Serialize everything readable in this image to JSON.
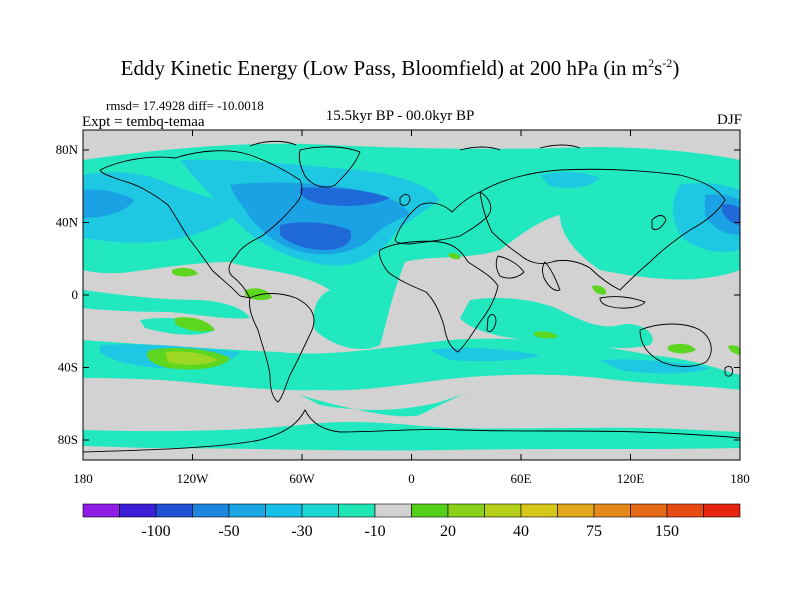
{
  "title": {
    "main": "Eddy Kinetic Energy (Low Pass, Bloomfield) at 200 hPa (in m",
    "unit_exp1": "2",
    "unit_mid": "s",
    "unit_exp2": "-2",
    "close": ")"
  },
  "stats": "rmsd= 17.4928 diff= -10.0018",
  "experiment": "Expt = tembq-temaa",
  "subtitle": "15.5kyr BP - 00.0kyr BP",
  "season": "DJF",
  "axes": {
    "y_ticks": [
      "80N",
      "40N",
      "0",
      "40S",
      "80S"
    ],
    "x_ticks": [
      "180",
      "120W",
      "60W",
      "0",
      "60E",
      "120E",
      "180"
    ]
  },
  "colorbar": {
    "labels": [
      "-100",
      "-50",
      "-30",
      "-10",
      "20",
      "40",
      "75",
      "150"
    ],
    "colors": [
      "#8f1de6",
      "#3c1fd8",
      "#1f52d6",
      "#1f86e0",
      "#1aa6e3",
      "#17c0e6",
      "#1dd7d4",
      "#1ee6b4",
      "#d2d2d2",
      "#54d01a",
      "#8ad11c",
      "#b6d01a",
      "#d8c71a",
      "#e3a91c",
      "#e58a1a",
      "#e66a17",
      "#e84a14",
      "#e52512"
    ]
  },
  "colors": {
    "land_outline": "#000000",
    "neutral": "#d2d2d2",
    "weak_negative": "#22e8c0",
    "moderate_negative": "#1ec8e2",
    "strong_negative": "#1aa2e4",
    "very_strong_negative": "#1f6ad8",
    "weak_positive": "#5cd61e",
    "moderate_positive": "#9cd823"
  }
}
